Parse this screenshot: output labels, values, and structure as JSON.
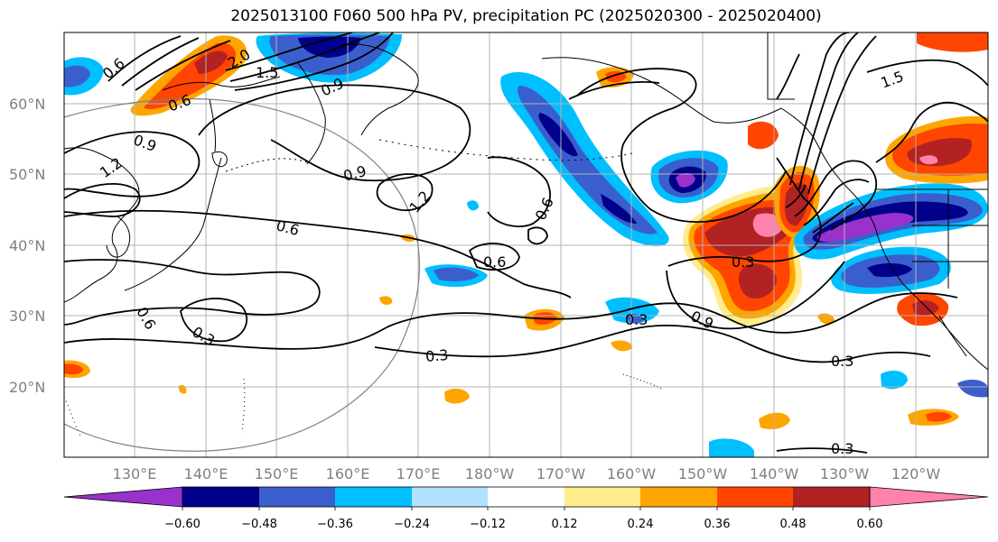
{
  "title": "2025013100 F060 500 hPa PV, precipitation PC (2025020300 - 2025020400)",
  "lat_ticks": [
    "20°N",
    "30°N",
    "40°N",
    "50°N",
    "60°N"
  ],
  "lon_ticks": [
    "130°E",
    "140°E",
    "150°E",
    "160°E",
    "170°E",
    "180°W",
    "170°W",
    "160°W",
    "150°W",
    "140°W",
    "130°W",
    "120°W"
  ],
  "contour_labels": [
    "0.6",
    "1.5",
    "2.0",
    "0.6",
    "0.9",
    "0.9",
    "1.2",
    "0.9",
    "1.2",
    "0.6",
    "0.6",
    "0.6",
    "0.3",
    "0.6",
    "0.3",
    "0.3",
    "0.9",
    "0.3",
    "0.3",
    "1.5",
    "0.3"
  ],
  "colorbar": {
    "ticks": [
      "−0.60",
      "−0.48",
      "−0.36",
      "−0.24",
      "−0.12",
      "0.12",
      "0.24",
      "0.36",
      "0.48",
      "0.60"
    ],
    "colors": [
      "#9932cc",
      "#00008b",
      "#3a5fcd",
      "#00bfff",
      "#b0e2ff",
      "#ffffff",
      "#ffec8b",
      "#ffa500",
      "#ff4500",
      "#b22222",
      "#ff82ab",
      "#ff82ab"
    ]
  }
}
